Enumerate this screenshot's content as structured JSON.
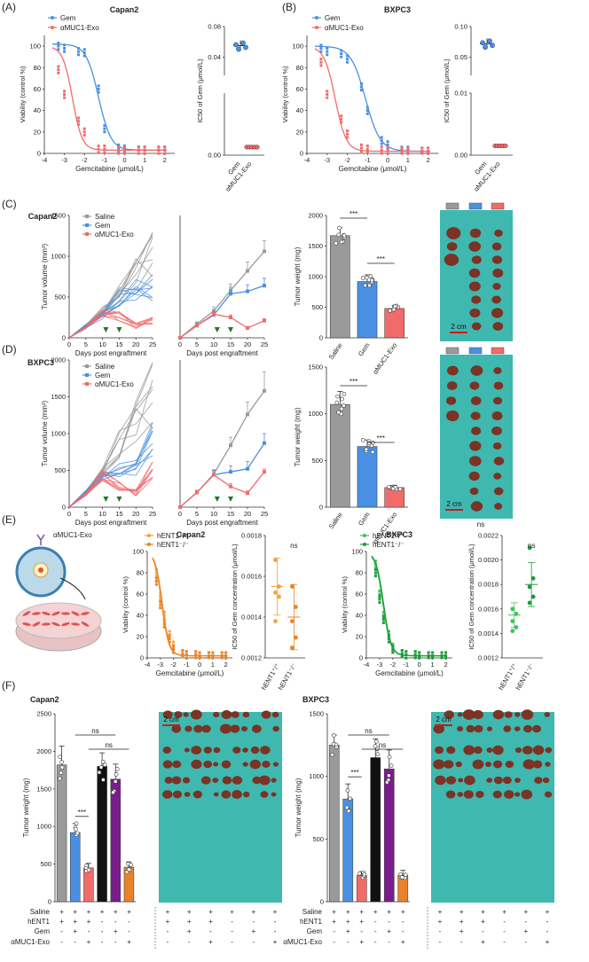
{
  "figure": {
    "panel_letters": [
      "(A)",
      "(B)",
      "(C)",
      "(D)",
      "(E)",
      "(F)"
    ],
    "colors": {
      "saline": "#9a9a9a",
      "gem": "#4a90e2",
      "exo": "#f26b6b",
      "hent1_pos": "#f4a340",
      "hent1_neg": "#e8832a",
      "e_bxpc3_pos": "#3cc45a",
      "e_bxpc3_neg": "#1f9a3b",
      "f_black": "#111111",
      "f_purple": "#7a1d8c",
      "f_orange": "#e8832a",
      "photo_bg": "#3fb8b0",
      "tumor": "#7a3324",
      "scale_bar": "#cc1a1a",
      "green_arrow": "#1f7a1f"
    },
    "icons": [
      "down-arrow-icon",
      "exosome-icon",
      "culture-dish-icon"
    ]
  },
  "chart_data": [
    {
      "id": "A_left",
      "type": "line",
      "title": "Capan2",
      "xlabel": "Gemcitabine (μmol/L)",
      "ylabel": "Viability (control %)",
      "xlim": [
        -4,
        2.5
      ],
      "ylim": [
        0,
        110
      ],
      "xticks": [
        "-4",
        "-3",
        "-2",
        "-1",
        "0",
        "1",
        "2"
      ],
      "yticks": [
        "0",
        "20",
        "40",
        "60",
        "80",
        "100"
      ],
      "series": [
        {
          "name": "Gem",
          "curve": {
            "ic50": -1.3,
            "top": 102,
            "bottom": 3,
            "hill": 1.4
          },
          "x": [
            -3.3,
            -3.0,
            -2.3,
            -2.0,
            -1.3,
            -1.0,
            -0.3,
            0.0,
            0.7,
            1.0,
            1.7,
            2.0
          ],
          "y": [
            100,
            98,
            95,
            94,
            60,
            23,
            5,
            4,
            3,
            3,
            3,
            3
          ]
        },
        {
          "name": "αMUC1-Exo",
          "curve": {
            "ic50": -2.6,
            "top": 100,
            "bottom": 3,
            "hill": 1.8
          },
          "x": [
            -3.3,
            -3.0,
            -2.3,
            -2.0,
            -1.3,
            -1.0,
            -0.3,
            0.0,
            0.7,
            1.0,
            1.7,
            2.0
          ],
          "y": [
            78,
            55,
            30,
            20,
            4,
            4,
            3,
            3,
            3,
            3,
            3,
            3
          ]
        }
      ]
    },
    {
      "id": "A_right",
      "type": "scatter",
      "ylabel": "IC50 of Gem (μmol/L)",
      "categories": [
        "Gem",
        "αMUC1-Exo"
      ],
      "yticks_upper": [
        "0.04",
        "0.08"
      ],
      "yticks_lower": [
        "0.00"
      ],
      "values": [
        0.055,
        0.0013
      ]
    },
    {
      "id": "B_left",
      "type": "line",
      "title": "BXPC3",
      "xlabel": "Gemcitabine (μmol/L)",
      "ylabel": "Viability (control %)",
      "xlim": [
        -4,
        2.5
      ],
      "ylim": [
        0,
        110
      ],
      "xticks": [
        "-4",
        "-3",
        "-2",
        "-1",
        "0",
        "1",
        "2"
      ],
      "yticks": [
        "0",
        "20",
        "40",
        "60",
        "80",
        "100"
      ],
      "series": [
        {
          "name": "Gem",
          "curve": {
            "ic50": -1.1,
            "top": 100,
            "bottom": 2,
            "hill": 1.2
          },
          "x": [
            -3.3,
            -3.0,
            -2.3,
            -2.0,
            -1.3,
            -1.0,
            -0.3,
            0.0,
            0.7,
            1.0,
            1.7,
            2.0
          ],
          "y": [
            98,
            95,
            93,
            88,
            62,
            40,
            12,
            8,
            3,
            3,
            2,
            2
          ]
        },
        {
          "name": "αMUC1-Exo",
          "curve": {
            "ic50": -2.6,
            "top": 100,
            "bottom": 2,
            "hill": 1.6
          },
          "x": [
            -3.3,
            -3.0,
            -2.3,
            -2.0,
            -1.3,
            -1.0,
            -0.3,
            0.0,
            0.7,
            1.0,
            1.7,
            2.0
          ],
          "y": [
            85,
            55,
            32,
            18,
            5,
            4,
            3,
            3,
            2,
            2,
            2,
            2
          ]
        }
      ]
    },
    {
      "id": "B_right",
      "type": "scatter",
      "ylabel": "IC50 of Gem (μmol/L)",
      "categories": [
        "Gem",
        "αMUC1-Exo"
      ],
      "yticks_upper": [
        "0.05",
        "0.10"
      ],
      "yticks_lower": [
        "0.01",
        "0.00"
      ],
      "values": [
        0.072,
        0.0015
      ]
    },
    {
      "id": "C_left",
      "type": "line",
      "title": "Capan2",
      "xlabel": "Days post engraftment",
      "ylabel": "Tumor volume (mm³)",
      "xlim": [
        0,
        25
      ],
      "ylim": [
        0,
        1500
      ],
      "xticks": [
        "0",
        "5",
        "10",
        "15",
        "20",
        "25"
      ],
      "yticks": [
        "0",
        "500",
        "1000",
        "1500"
      ],
      "legend": [
        "Saline",
        "Gem",
        "αMUC1-Exo"
      ],
      "x": [
        0,
        5,
        10,
        15,
        20,
        25
      ],
      "series": [
        {
          "name": "Saline",
          "mean": [
            0,
            150,
            330,
            540,
            800,
            1050
          ]
        },
        {
          "name": "Gem",
          "mean": [
            0,
            140,
            280,
            500,
            560,
            630
          ]
        },
        {
          "name": "αMUC1-Exo",
          "mean": [
            0,
            130,
            290,
            260,
            150,
            200
          ]
        }
      ],
      "arrows_at_days": [
        11,
        15
      ]
    },
    {
      "id": "C_mid",
      "type": "line",
      "xlabel": "Days post engraftment",
      "xlim": [
        0,
        25
      ],
      "ylim": [
        0,
        1500
      ],
      "xticks": [
        "0",
        "5",
        "10",
        "15",
        "20",
        "25"
      ],
      "x": [
        0,
        5,
        10,
        15,
        20,
        25
      ],
      "series": [
        {
          "name": "Saline",
          "values": [
            0,
            170,
            330,
            580,
            820,
            1060
          ],
          "err": [
            0,
            25,
            50,
            80,
            110,
            130
          ]
        },
        {
          "name": "Gem",
          "values": [
            0,
            150,
            280,
            540,
            570,
            640
          ],
          "err": [
            0,
            20,
            40,
            80,
            80,
            90
          ]
        },
        {
          "name": "αMUC1-Exo",
          "values": [
            0,
            150,
            290,
            250,
            120,
            210
          ],
          "err": [
            0,
            20,
            35,
            30,
            20,
            25
          ]
        }
      ],
      "arrows_at_days": [
        11,
        15
      ]
    },
    {
      "id": "C_bar",
      "type": "bar",
      "ylabel": "Tumor weight (mg)",
      "categories": [
        "Saline",
        "Gem",
        "αMUC1-Exo"
      ],
      "values": [
        1670,
        920,
        480
      ],
      "err": [
        130,
        110,
        50
      ],
      "ylim": [
        0,
        2000
      ],
      "yticks": [
        "0",
        "500",
        "1000",
        "1500",
        "2000"
      ],
      "significance": [
        "***",
        "***"
      ]
    },
    {
      "id": "C_photo",
      "scale_label": "2 cm"
    },
    {
      "id": "D_left",
      "type": "line",
      "title": "BXPC3",
      "xlabel": "Days post engraftment",
      "ylabel": "Tumor volume (mm³)",
      "xlim": [
        0,
        25
      ],
      "ylim": [
        0,
        2000
      ],
      "xticks": [
        "0",
        "5",
        "10",
        "15",
        "20",
        "25"
      ],
      "yticks": [
        "0",
        "500",
        "1000",
        "1500",
        "2000"
      ],
      "legend": [
        "Saline",
        "Gem",
        "αMUC1-Exo"
      ],
      "x": [
        0,
        5,
        10,
        15,
        20,
        25
      ],
      "series": [
        {
          "name": "Saline",
          "mean": [
            0,
            200,
            450,
            850,
            1250,
            1580
          ]
        },
        {
          "name": "Gem",
          "mean": [
            0,
            200,
            420,
            500,
            560,
            880
          ]
        },
        {
          "name": "αMUC1-Exo",
          "mean": [
            0,
            180,
            430,
            280,
            200,
            480
          ]
        }
      ],
      "arrows_at_days": [
        11,
        15
      ]
    },
    {
      "id": "D_mid",
      "type": "line",
      "xlabel": "Days post engraftment",
      "xlim": [
        0,
        25
      ],
      "ylim": [
        0,
        2000
      ],
      "xticks": [
        "0",
        "5",
        "10",
        "15",
        "20",
        "25"
      ],
      "x": [
        0,
        5,
        10,
        15,
        20,
        25
      ],
      "series": [
        {
          "name": "Saline",
          "values": [
            0,
            200,
            450,
            840,
            1260,
            1580
          ],
          "err": [
            0,
            30,
            60,
            110,
            170,
            260
          ]
        },
        {
          "name": "Gem",
          "values": [
            0,
            200,
            440,
            480,
            520,
            870
          ],
          "err": [
            0,
            25,
            60,
            80,
            100,
            130
          ]
        },
        {
          "name": "αMUC1-Exo",
          "values": [
            0,
            200,
            440,
            280,
            190,
            480
          ],
          "err": [
            0,
            25,
            50,
            40,
            30,
            40
          ]
        }
      ],
      "arrows_at_days": [
        11,
        15
      ]
    },
    {
      "id": "D_bar",
      "type": "bar",
      "ylabel": "Tumor weight (mg)",
      "categories": [
        "Saline",
        "Gem",
        "αMUC1-Exo"
      ],
      "values": [
        1100,
        650,
        210
      ],
      "err": [
        140,
        70,
        25
      ],
      "ylim": [
        0,
        1500
      ],
      "yticks": [
        "0",
        "500",
        "1000",
        "1500"
      ],
      "significance": [
        "***",
        "***"
      ]
    },
    {
      "id": "D_photo",
      "scale_label": "2 cm"
    },
    {
      "id": "E_schematic",
      "label": "αMUC1-Exo"
    },
    {
      "id": "E_capan2_curve",
      "type": "line",
      "title": "Capan2",
      "xlabel": "Gemcitabine (μmol/L)",
      "ylabel": "Viability (control %)",
      "xlim": [
        -4,
        2.5
      ],
      "ylim": [
        0,
        100
      ],
      "xticks": [
        "-4",
        "-3",
        "-2",
        "-1",
        "0",
        "1",
        "2"
      ],
      "yticks": [
        "0",
        "20",
        "40",
        "60",
        "80",
        "100"
      ],
      "legend": [
        "hENT1⁺/⁺",
        "hENT1⁻/⁻"
      ],
      "series": [
        {
          "name": "hENT1+/+",
          "curve": {
            "ic50": -2.9,
            "top": 100,
            "bottom": 2,
            "hill": 1.6
          },
          "x": [
            -3.3,
            -3.0,
            -2.7,
            -2.3,
            -2.0,
            -1.3,
            -1.0,
            -0.3,
            0.0,
            0.7,
            1.0,
            1.7,
            2.0
          ],
          "y": [
            80,
            58,
            40,
            22,
            12,
            4,
            3,
            3,
            2,
            2,
            2,
            2,
            2
          ]
        },
        {
          "name": "hENT1-/-",
          "curve": {
            "ic50": -2.85,
            "top": 100,
            "bottom": 2,
            "hill": 1.6
          },
          "x": [
            -3.3,
            -3.0,
            -2.7,
            -2.3,
            -2.0,
            -1.3,
            -1.0,
            -0.3,
            0.0,
            0.7,
            1.0,
            1.7,
            2.0
          ],
          "y": [
            72,
            50,
            32,
            18,
            8,
            4,
            3,
            3,
            2,
            2,
            2,
            2,
            2
          ]
        }
      ]
    },
    {
      "id": "E_capan2_ic50",
      "type": "scatter",
      "ylabel": "IC50 of Gem concentration (μmol/L)",
      "categories": [
        "hENT1⁺/⁺",
        "hENT1⁻/⁻"
      ],
      "ylim": [
        0.0012,
        0.0018
      ],
      "yticks": [
        "0.0012",
        "0.0014",
        "0.0016",
        "0.0018"
      ],
      "points": [
        [
          0.00168,
          0.00155,
          0.00152,
          0.0015,
          0.00138
        ],
        [
          0.00155,
          0.00145,
          0.00138,
          0.0013,
          0.00125
        ]
      ],
      "mean": [
        0.00155,
        0.0014
      ],
      "err": [
        0.00014,
        0.00016
      ],
      "significance": "ns"
    },
    {
      "id": "E_bxpc3_curve",
      "type": "line",
      "title": "BXPC3",
      "xlabel": "Gemcitabine (μmol/L)",
      "ylabel": "Viability (control %)",
      "xlim": [
        -4,
        2.5
      ],
      "ylim": [
        0,
        100
      ],
      "xticks": [
        "-4",
        "-3",
        "-2",
        "-1",
        "0",
        "1",
        "2"
      ],
      "yticks": [
        "0",
        "20",
        "40",
        "60",
        "80",
        "100"
      ],
      "legend": [
        "hENT1⁺/⁺",
        "hENT1⁻/⁻"
      ],
      "series": [
        {
          "name": "hENT1+/+",
          "curve": {
            "ic50": -2.75,
            "top": 100,
            "bottom": 2,
            "hill": 1.5
          },
          "x": [
            -3.3,
            -3.0,
            -2.7,
            -2.3,
            -2.0,
            -1.3,
            -1.0,
            -0.3,
            0.0,
            0.7,
            1.0,
            1.7,
            2.0
          ],
          "y": [
            88,
            60,
            40,
            22,
            10,
            4,
            3,
            3,
            2,
            2,
            2,
            2,
            2
          ]
        },
        {
          "name": "hENT1-/-",
          "curve": {
            "ic50": -2.7,
            "top": 100,
            "bottom": 2,
            "hill": 1.5
          },
          "x": [
            -3.3,
            -3.0,
            -2.7,
            -2.3,
            -2.0,
            -1.3,
            -1.0,
            -0.3,
            0.0,
            0.7,
            1.0,
            1.7,
            2.0
          ],
          "y": [
            80,
            55,
            36,
            18,
            8,
            4,
            3,
            3,
            2,
            2,
            2,
            2,
            2
          ]
        }
      ]
    },
    {
      "id": "E_bxpc3_ic50",
      "type": "scatter",
      "ylabel": "IC50 of Gem concentration (μmol/L)",
      "categories": [
        "hENT1⁺/⁺",
        "hENT1⁻/⁻"
      ],
      "ylim": [
        0.0012,
        0.0022
      ],
      "yticks": [
        "0.0012",
        "0.0014",
        "0.0016",
        "0.0018",
        "0.0020",
        "0.0022"
      ],
      "points": [
        [
          0.0016,
          0.00156,
          0.0015,
          0.00145,
          0.00142
        ],
        [
          0.0021,
          0.00185,
          0.00178,
          0.0017,
          0.00165
        ]
      ],
      "mean": [
        0.00155,
        0.0018
      ],
      "err": [
        0.0001,
        0.00018
      ],
      "significance": "ns"
    },
    {
      "id": "F_capan2",
      "type": "bar",
      "title": "Capan2",
      "ylabel": "Tumor weight (mg)",
      "values": [
        1820,
        920,
        450,
        1800,
        1630,
        460
      ],
      "err": [
        250,
        120,
        60,
        180,
        200,
        70
      ],
      "ylim": [
        0,
        2500
      ],
      "yticks": [
        "0",
        "500",
        "1000",
        "1500",
        "2000",
        "2500"
      ],
      "significance": [
        "***",
        "ns",
        "ns"
      ],
      "scale_label": "2 cm",
      "row_labels": [
        "Saline",
        "hENT1",
        "Gem",
        "αMUC1-Exo"
      ],
      "row_marks": [
        [
          "+",
          "+",
          "+",
          "+",
          "+",
          "+",
          "+",
          "+",
          "+",
          "+",
          "+",
          "+"
        ],
        [
          "+",
          "+",
          "+",
          "-",
          "-",
          "-",
          "+",
          "+",
          "+",
          "-",
          "-",
          "-"
        ],
        [
          "-",
          "+",
          "-",
          "-",
          "+",
          "-",
          "-",
          "+",
          "-",
          "-",
          "+",
          "-"
        ],
        [
          "-",
          "-",
          "+",
          "-",
          "-",
          "+",
          "-",
          "-",
          "+",
          "-",
          "-",
          "+"
        ]
      ]
    },
    {
      "id": "F_bxpc3",
      "type": "bar",
      "title": "BXPC3",
      "ylabel": "Tumor weight (mg)",
      "values": [
        1250,
        820,
        210,
        1150,
        1060,
        210
      ],
      "err": [
        80,
        120,
        30,
        150,
        150,
        40
      ],
      "ylim": [
        0,
        1500
      ],
      "yticks": [
        "0",
        "500",
        "1000",
        "1500"
      ],
      "significance": [
        "***",
        "ns",
        "ns"
      ],
      "scale_label": "2 cm",
      "row_labels": [
        "Saline",
        "hENT1",
        "Gem",
        "αMUC1-Exo"
      ],
      "row_marks": [
        [
          "+",
          "+",
          "+",
          "+",
          "+",
          "+",
          "+",
          "+",
          "+",
          "+",
          "+",
          "+"
        ],
        [
          "+",
          "+",
          "+",
          "-",
          "-",
          "-",
          "+",
          "+",
          "+",
          "-",
          "-",
          "-"
        ],
        [
          "-",
          "+",
          "-",
          "-",
          "+",
          "-",
          "-",
          "+",
          "-",
          "-",
          "+",
          "-"
        ],
        [
          "-",
          "-",
          "+",
          "-",
          "-",
          "+",
          "-",
          "-",
          "+",
          "-",
          "-",
          "+"
        ]
      ]
    }
  ]
}
